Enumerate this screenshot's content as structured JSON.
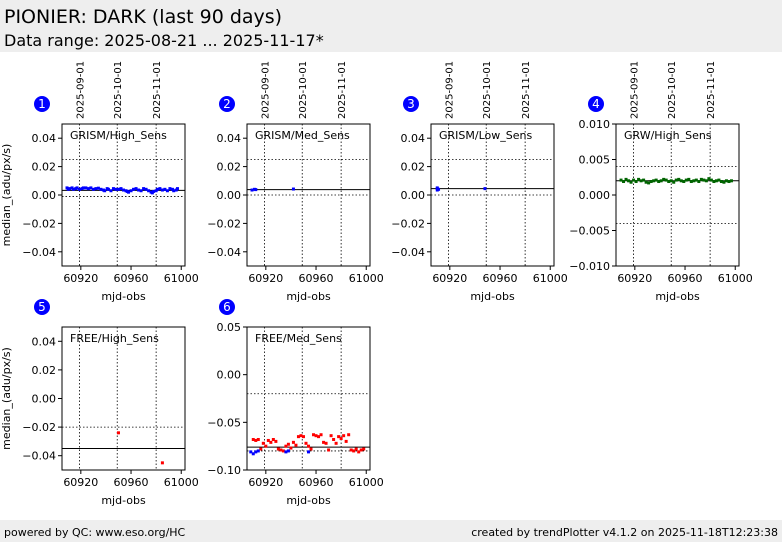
{
  "header": {
    "title": "PIONIER: DARK (last 90 days)",
    "subtitle": "Data range: 2025-08-21 ... 2025-11-17*"
  },
  "footer": {
    "left": "powered by QC: www.eso.org/HC",
    "right": "created by trendPlotter v4.1.2 on 2025-11-18T12:23:38"
  },
  "colors": {
    "blue": "#0000ff",
    "green": "#006400",
    "red": "#ff0000",
    "badge": "#0000ff"
  },
  "date_ticks": [
    {
      "label": "2025-09-01",
      "mjd": 60919
    },
    {
      "label": "2025-10-01",
      "mjd": 60949
    },
    {
      "label": "2025-11-01",
      "mjd": 60980
    }
  ],
  "chart_data": [
    {
      "type": "scatter",
      "badge": "1",
      "label": "GRISM/High_Sens",
      "xlabel": "mjd-obs",
      "ylabel": "median_(adu/px/s)",
      "xlim": [
        60905,
        61003
      ],
      "ylim": [
        -0.05,
        0.05
      ],
      "xticks": [
        60920,
        60960,
        61000
      ],
      "yticks": [
        0.04,
        0.02,
        0.0,
        -0.02,
        -0.04
      ],
      "yticklabels": [
        "0.04",
        "0.02",
        "0.00",
        "−0.02",
        "−0.04"
      ],
      "hlines": {
        "solid": [
          0.0033
        ],
        "dotted": [
          0.025,
          -0.001
        ]
      },
      "series": [
        {
          "color": "blue",
          "points": [
            [
              60909,
              0.005
            ],
            [
              60910,
              0.004
            ],
            [
              60911,
              0.0045
            ],
            [
              60913,
              0.005
            ],
            [
              60914,
              0.004
            ],
            [
              60916,
              0.0045
            ],
            [
              60917,
              0.005
            ],
            [
              60919,
              0.004
            ],
            [
              60921,
              0.0045
            ],
            [
              60922,
              0.005
            ],
            [
              60924,
              0.005
            ],
            [
              60926,
              0.0045
            ],
            [
              60928,
              0.005
            ],
            [
              60930,
              0.004
            ],
            [
              60932,
              0.0045
            ],
            [
              60934,
              0.0048
            ],
            [
              60936,
              0.004
            ],
            [
              60938,
              0.0035
            ],
            [
              60939,
              0.003
            ],
            [
              60941,
              0.0045
            ],
            [
              60942,
              0.004
            ],
            [
              60944,
              0.003
            ],
            [
              60946,
              0.0045
            ],
            [
              60948,
              0.004
            ],
            [
              60950,
              0.004
            ],
            [
              60952,
              0.0045
            ],
            [
              60954,
              0.0035
            ],
            [
              60956,
              0.003
            ],
            [
              60957,
              0.0025
            ],
            [
              60958,
              0.002
            ],
            [
              60960,
              0.003
            ],
            [
              60962,
              0.004
            ],
            [
              60964,
              0.0045
            ],
            [
              60966,
              0.0035
            ],
            [
              60968,
              0.003
            ],
            [
              60970,
              0.0045
            ],
            [
              60972,
              0.004
            ],
            [
              60974,
              0.003
            ],
            [
              60976,
              0.002
            ],
            [
              60977,
              0.0015
            ],
            [
              60978,
              0.0025
            ],
            [
              60980,
              0.003
            ],
            [
              60981,
              0.004
            ],
            [
              60983,
              0.0045
            ],
            [
              60985,
              0.0035
            ],
            [
              60987,
              0.004
            ],
            [
              60989,
              0.003
            ],
            [
              60991,
              0.0045
            ],
            [
              60993,
              0.004
            ],
            [
              60994,
              0.003
            ],
            [
              60996,
              0.0035
            ],
            [
              60997,
              0.0045
            ]
          ]
        }
      ]
    },
    {
      "type": "scatter",
      "badge": "2",
      "label": "GRISM/Med_Sens",
      "xlabel": "mjd-obs",
      "ylabel": "",
      "xlim": [
        60905,
        61003
      ],
      "ylim": [
        -0.05,
        0.05
      ],
      "xticks": [
        60920,
        60960,
        61000
      ],
      "yticks": [
        0.04,
        0.02,
        0.0,
        -0.02,
        -0.04
      ],
      "yticklabels": [
        "0.04",
        "0.02",
        "0.00",
        "−0.02",
        "−0.04"
      ],
      "hlines": {
        "solid": [
          0.0038
        ],
        "dotted": [
          0.025,
          0.0
        ]
      },
      "series": [
        {
          "color": "blue",
          "points": [
            [
              60909,
              0.0035
            ],
            [
              60911,
              0.004
            ],
            [
              60912,
              0.0038
            ],
            [
              60942,
              0.0042
            ]
          ]
        }
      ]
    },
    {
      "type": "scatter",
      "badge": "3",
      "label": "GRISM/Low_Sens",
      "xlabel": "mjd-obs",
      "ylabel": "",
      "xlim": [
        60905,
        61003
      ],
      "ylim": [
        -0.05,
        0.05
      ],
      "xticks": [
        60920,
        60960,
        61000
      ],
      "yticks": [
        0.04,
        0.02,
        0.0,
        -0.02,
        -0.04
      ],
      "yticklabels": [
        "0.04",
        "0.02",
        "0.00",
        "−0.02",
        "−0.04"
      ],
      "hlines": {
        "solid": [
          0.0045
        ],
        "dotted": [
          0.025,
          0.0
        ]
      },
      "series": [
        {
          "color": "blue",
          "points": [
            [
              60910,
              0.0045
            ],
            [
              60910,
              0.0035
            ],
            [
              60911,
              0.004
            ],
            [
              60910,
              0.005
            ],
            [
              60948,
              0.0045
            ]
          ]
        }
      ]
    },
    {
      "type": "scatter",
      "badge": "4",
      "label": "GRW/High_Sens",
      "xlabel": "mjd-obs",
      "ylabel": "",
      "xlim": [
        60905,
        61003
      ],
      "ylim": [
        -0.01,
        0.01
      ],
      "xticks": [
        60920,
        60960,
        61000
      ],
      "yticks": [
        0.01,
        0.005,
        0.0,
        -0.005,
        -0.01
      ],
      "yticklabels": [
        "0.010",
        "0.005",
        "0.000",
        "−0.005",
        "−0.010"
      ],
      "hlines": {
        "solid": [
          0.002
        ],
        "dotted": [
          0.004,
          -0.004
        ]
      },
      "series": [
        {
          "color": "green",
          "points": [
            [
              60909,
              0.0021
            ],
            [
              60911,
              0.0019
            ],
            [
              60913,
              0.0022
            ],
            [
              60915,
              0.002
            ],
            [
              60917,
              0.0018
            ],
            [
              60919,
              0.0021
            ],
            [
              60921,
              0.0019
            ],
            [
              60923,
              0.0022
            ],
            [
              60925,
              0.002
            ],
            [
              60927,
              0.0021
            ],
            [
              60929,
              0.0018
            ],
            [
              60931,
              0.0017
            ],
            [
              60933,
              0.0019
            ],
            [
              60935,
              0.002
            ],
            [
              60937,
              0.0021
            ],
            [
              60939,
              0.0019
            ],
            [
              60941,
              0.002
            ],
            [
              60943,
              0.0022
            ],
            [
              60945,
              0.0021
            ],
            [
              60947,
              0.0019
            ],
            [
              60949,
              0.002
            ],
            [
              60951,
              0.0018
            ],
            [
              60953,
              0.0021
            ],
            [
              60955,
              0.0022
            ],
            [
              60957,
              0.002
            ],
            [
              60959,
              0.0019
            ],
            [
              60961,
              0.0021
            ],
            [
              60963,
              0.0022
            ],
            [
              60965,
              0.0019
            ],
            [
              60967,
              0.002
            ],
            [
              60969,
              0.0021
            ],
            [
              60971,
              0.0019
            ],
            [
              60973,
              0.0022
            ],
            [
              60975,
              0.0021
            ],
            [
              60977,
              0.002
            ],
            [
              60979,
              0.0023
            ],
            [
              60981,
              0.0021
            ],
            [
              60983,
              0.0019
            ],
            [
              60985,
              0.002
            ],
            [
              60987,
              0.0021
            ],
            [
              60989,
              0.0019
            ],
            [
              60991,
              0.0018
            ],
            [
              60993,
              0.002
            ],
            [
              60995,
              0.0019
            ],
            [
              60997,
              0.002
            ]
          ]
        }
      ]
    },
    {
      "type": "scatter",
      "badge": "5",
      "label": "FREE/High_Sens",
      "xlabel": "mjd-obs",
      "ylabel": "median_(adu/px/s)",
      "xlim": [
        60905,
        61003
      ],
      "ylim": [
        -0.05,
        0.05
      ],
      "xticks": [
        60920,
        60960,
        61000
      ],
      "yticks": [
        0.04,
        0.02,
        0.0,
        -0.02,
        -0.04
      ],
      "yticklabels": [
        "0.04",
        "0.02",
        "0.00",
        "−0.02",
        "−0.04"
      ],
      "hlines": {
        "solid": [
          -0.035
        ],
        "dotted": [
          -0.02
        ]
      },
      "series": [
        {
          "color": "red",
          "points": [
            [
              60950,
              -0.024
            ],
            [
              60985,
              -0.045
            ]
          ]
        }
      ]
    },
    {
      "type": "scatter",
      "badge": "6",
      "label": "FREE/Med_Sens",
      "xlabel": "mjd-obs",
      "ylabel": "",
      "xlim": [
        60905,
        61003
      ],
      "ylim": [
        -0.1,
        0.05
      ],
      "xticks": [
        60920,
        60960,
        61000
      ],
      "yticks": [
        0.05,
        0.0,
        -0.05,
        -0.1
      ],
      "yticklabels": [
        "0.05",
        "0.00",
        "−0.05",
        "−0.10"
      ],
      "hlines": {
        "solid": [
          -0.076
        ],
        "dotted": [
          -0.02,
          -0.08
        ]
      },
      "series": [
        {
          "color": "red",
          "points": [
            [
              60910,
              -0.068
            ],
            [
              60912,
              -0.069
            ],
            [
              60914,
              -0.068
            ],
            [
              60916,
              -0.078
            ],
            [
              60918,
              -0.072
            ],
            [
              60920,
              -0.075
            ],
            [
              60922,
              -0.069
            ],
            [
              60924,
              -0.071
            ],
            [
              60926,
              -0.068
            ],
            [
              60928,
              -0.07
            ],
            [
              60930,
              -0.078
            ],
            [
              60932,
              -0.079
            ],
            [
              60934,
              -0.08
            ],
            [
              60936,
              -0.075
            ],
            [
              60938,
              -0.073
            ],
            [
              60940,
              -0.077
            ],
            [
              60942,
              -0.071
            ],
            [
              60944,
              -0.074
            ],
            [
              60946,
              -0.065
            ],
            [
              60948,
              -0.064
            ],
            [
              60950,
              -0.065
            ],
            [
              60952,
              -0.072
            ],
            [
              60954,
              -0.075
            ],
            [
              60956,
              -0.078
            ],
            [
              60958,
              -0.063
            ],
            [
              60960,
              -0.064
            ],
            [
              60962,
              -0.065
            ],
            [
              60964,
              -0.063
            ],
            [
              60966,
              -0.071
            ],
            [
              60968,
              -0.072
            ],
            [
              60970,
              -0.079
            ],
            [
              60972,
              -0.064
            ],
            [
              60974,
              -0.068
            ],
            [
              60976,
              -0.072
            ],
            [
              60978,
              -0.065
            ],
            [
              60980,
              -0.067
            ],
            [
              60982,
              -0.064
            ],
            [
              60984,
              -0.07
            ],
            [
              60986,
              -0.063
            ],
            [
              60988,
              -0.079
            ],
            [
              60990,
              -0.08
            ],
            [
              60992,
              -0.078
            ],
            [
              60994,
              -0.081
            ],
            [
              60996,
              -0.079
            ],
            [
              60998,
              -0.078
            ]
          ]
        },
        {
          "color": "blue",
          "points": [
            [
              60908,
              -0.081
            ],
            [
              60910,
              -0.083
            ],
            [
              60912,
              -0.081
            ],
            [
              60914,
              -0.08
            ],
            [
              60936,
              -0.081
            ],
            [
              60938,
              -0.08
            ],
            [
              60954,
              -0.081
            ]
          ]
        }
      ]
    }
  ]
}
